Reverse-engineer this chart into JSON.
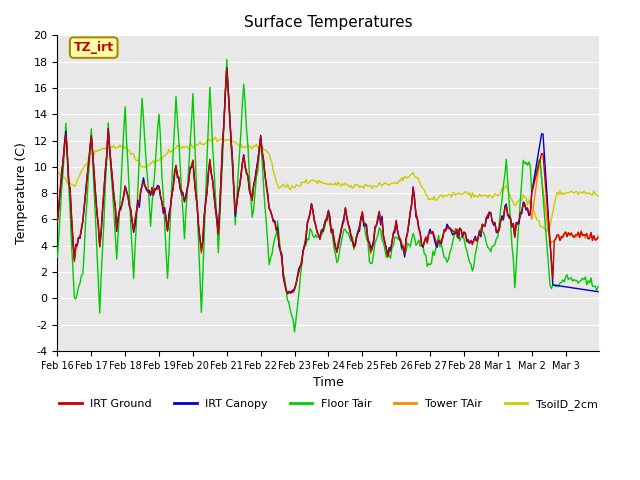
{
  "title": "Surface Temperatures",
  "ylabel": "Temperature (C)",
  "xlabel": "Time",
  "ylim": [
    -4,
    20
  ],
  "yticks": [
    -4,
    -2,
    0,
    2,
    4,
    6,
    8,
    10,
    12,
    14,
    16,
    18,
    20
  ],
  "xtick_labels": [
    "Feb 16",
    "Feb 17",
    "Feb 18",
    "Feb 19",
    "Feb 20",
    "Feb 21",
    "Feb 22",
    "Feb 23",
    "Feb 24",
    "Feb 25",
    "Feb 26",
    "Feb 27",
    "Feb 28",
    "Mar 1",
    "Mar 2",
    "Mar 3"
  ],
  "colors": {
    "IRT Ground": "#cc0000",
    "IRT Canopy": "#0000cc",
    "Floor Tair": "#00cc00",
    "Tower TAir": "#ff8800",
    "TsoilD_2cm": "#cccc00"
  },
  "bg_color": "#e8e8e8",
  "annotation_text": "TZ_irt",
  "annotation_color": "#cc0000",
  "annotation_bg": "#ffffaa",
  "annotation_border": "#aa8800"
}
